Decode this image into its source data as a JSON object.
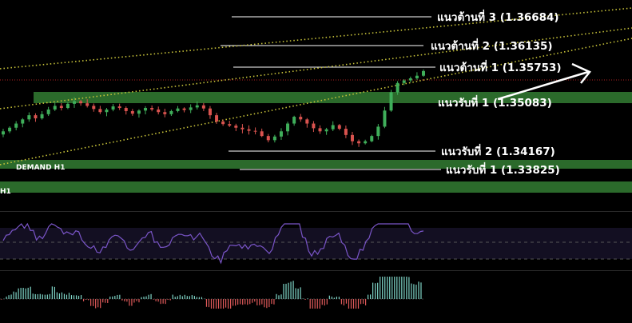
{
  "chart_data": {
    "type": "candlestick",
    "title": "",
    "grid": false,
    "price_range": [
      1.335,
      1.37
    ],
    "levels": [
      {
        "id": "r3",
        "label": "แนวต้านที่ 3 (1.36684)",
        "value": 1.36684,
        "kind": "resistance"
      },
      {
        "id": "r2",
        "label": "แนวต้านที่ 2 (1.36135)",
        "value": 1.36135,
        "kind": "resistance"
      },
      {
        "id": "r1",
        "label": "แนวต้านที่ 1 (1.35753)",
        "value": 1.35753,
        "kind": "resistance"
      },
      {
        "id": "s1",
        "label": "แนวรับที่ 1 (1.35083)",
        "value": 1.35083,
        "kind": "support"
      },
      {
        "id": "s2",
        "label": "แนวรับที่ 2 (1.34167)",
        "value": 1.34167,
        "kind": "support"
      },
      {
        "id": "s3",
        "label": "แนวรับที่ 1 (1.33825)",
        "value": 1.33825,
        "kind": "support"
      }
    ],
    "zones": [
      {
        "id": "upper-zone",
        "label": "",
        "low": 1.3499,
        "high": 1.3513
      },
      {
        "id": "demand-h1",
        "label": "DEMAND H1",
        "low": 1.3386,
        "high": 1.3396
      },
      {
        "id": "lower-zone",
        "label": "H1",
        "low": 1.3344,
        "high": 1.3353
      }
    ],
    "channel_lines": [
      {
        "id": "channel-top",
        "from": [
          0,
          1.358
        ],
        "to": [
          791,
          1.368
        ]
      },
      {
        "id": "channel-mid",
        "from": [
          0,
          1.3527
        ],
        "to": [
          791,
          1.363
        ]
      },
      {
        "id": "channel-bottom",
        "from": [
          0,
          1.3402
        ],
        "to": [
          791,
          1.358
        ]
      }
    ],
    "current_price": 1.3571,
    "closes": [
      1.3455,
      1.3462,
      1.347,
      1.3478,
      1.3486,
      1.348,
      1.3488,
      1.3497,
      1.3504,
      1.35,
      1.3508,
      1.3513,
      1.3509,
      1.3504,
      1.3498,
      1.3492,
      1.3497,
      1.3503,
      1.35,
      1.3494,
      1.3489,
      1.3495,
      1.35,
      1.3497,
      1.3492,
      1.3488,
      1.3494,
      1.3499,
      1.3496,
      1.3501,
      1.3505,
      1.3499,
      1.3486,
      1.3474,
      1.3469,
      1.3466,
      1.3462,
      1.3459,
      1.3456,
      1.3455,
      1.3446,
      1.3438,
      1.3445,
      1.3455,
      1.347,
      1.3483,
      1.3478,
      1.347,
      1.3461,
      1.3455,
      1.3459,
      1.3467,
      1.346,
      1.3448,
      1.3436,
      1.3432,
      1.3436,
      1.3446,
      1.3464,
      1.3495,
      1.353,
      1.3548,
      1.3553,
      1.3557,
      1.3562,
      1.3571
    ]
  }
}
